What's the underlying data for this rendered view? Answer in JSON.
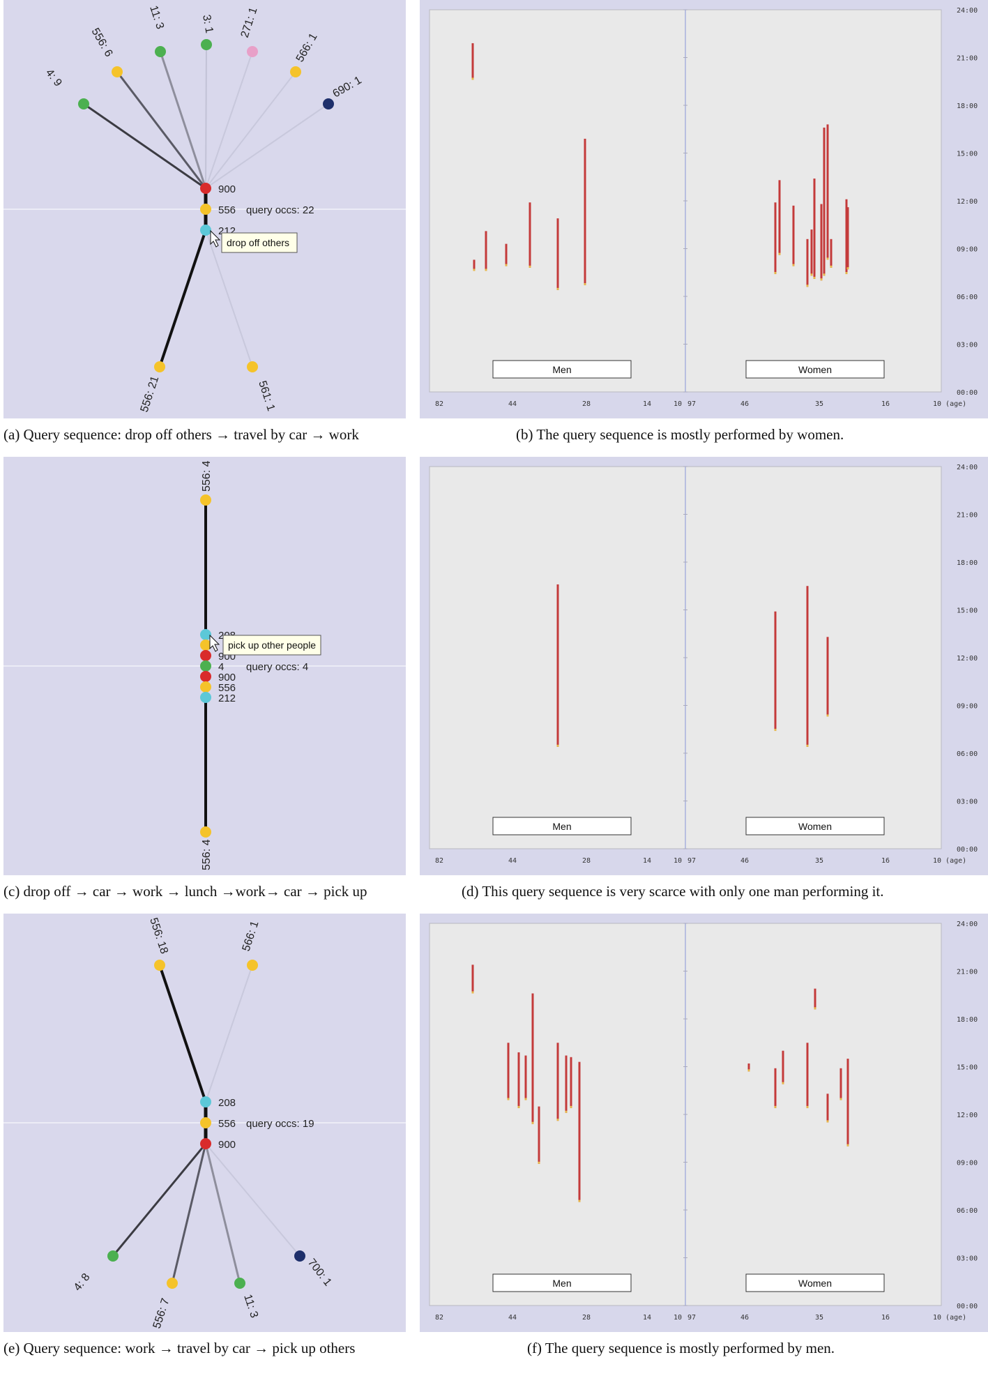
{
  "panels": {
    "a": {
      "caption": "(a)  Query sequence: drop off others → travel by car → work",
      "stack_labels": [
        "900",
        "556",
        "212"
      ],
      "query_occs": "query occs: 22",
      "tooltip": "drop off others",
      "upper_branches": [
        {
          "label": "4: 9",
          "color": "#4cb050"
        },
        {
          "label": "556: 6",
          "color": "#f5c32a"
        },
        {
          "label": "11: 3",
          "color": "#4cb050"
        },
        {
          "label": "3: 1",
          "color": "#4cb050"
        },
        {
          "label": "271: 1",
          "color": "#e8a0c8"
        },
        {
          "label": "566: 1",
          "color": "#f5c32a"
        },
        {
          "label": "690: 1",
          "color": "#1e2f6b"
        }
      ],
      "lower_branches": [
        {
          "label": "556: 21",
          "color": "#f5c32a"
        },
        {
          "label": "561: 1",
          "color": "#f5c32a"
        }
      ]
    },
    "c": {
      "caption": "(c)  drop off → car → work → lunch →work→ car → pick up",
      "top_label": "556: 4",
      "bottom_label": "556: 4",
      "stack_labels": [
        "208",
        "900",
        "4",
        "900",
        "556",
        "212"
      ],
      "query_occs": "query occs: 4",
      "tooltip": "pick up other people"
    },
    "e": {
      "caption": "(e)  Query sequence: work → travel by car → pick up others",
      "stack_labels": [
        "208",
        "556",
        "900"
      ],
      "query_occs": "query occs: 19",
      "upper_branches": [
        {
          "label": "556: 18",
          "color": "#f5c32a"
        },
        {
          "label": "566: 1",
          "color": "#f5c32a"
        }
      ],
      "lower_branches": [
        {
          "label": "4: 8",
          "color": "#4cb050"
        },
        {
          "label": "556: 7",
          "color": "#f5c32a"
        },
        {
          "label": "11: 3",
          "color": "#4cb050"
        },
        {
          "label": "700: 1",
          "color": "#1e2f6b"
        }
      ]
    },
    "b": {
      "caption": "(b)  The query sequence is mostly performed by women.",
      "men_label": "Men",
      "women_label": "Women"
    },
    "d": {
      "caption": "(d)  This query sequence is very scarce with only one man performing it.",
      "men_label": "Men",
      "women_label": "Women"
    },
    "f": {
      "caption": "(f)  The query sequence is mostly performed by men.",
      "men_label": "Men",
      "women_label": "Women"
    }
  },
  "axis": {
    "y_ticks": [
      "24:00",
      "21:00",
      "18:00",
      "15:00",
      "12:00",
      "09:00",
      "06:00",
      "03:00",
      "00:00"
    ],
    "x_ticks_men": [
      "82",
      "44",
      "28",
      "14",
      "10"
    ],
    "x_ticks_women": [
      "97",
      "46",
      "35",
      "16",
      "10 (age)"
    ]
  },
  "chart_data": [
    {
      "type": "bar",
      "panel": "b",
      "groups": [
        "Men",
        "Women"
      ],
      "y_unit": "time of day (hours)",
      "ylim": [
        0,
        24
      ],
      "bars": {
        "Men": [
          [
            7.6,
            8.3
          ],
          [
            7.6,
            10.1
          ],
          [
            7.9,
            9.3
          ],
          [
            7.8,
            11.9
          ],
          [
            6.4,
            10.9
          ],
          [
            6.7,
            15.9
          ],
          [
            19.6,
            21.9
          ]
        ],
        "Women": [
          [
            7.4,
            11.9
          ],
          [
            8.6,
            13.3
          ],
          [
            7.9,
            11.7
          ],
          [
            6.6,
            9.6
          ],
          [
            7.3,
            10.2
          ],
          [
            7.1,
            13.4
          ],
          [
            7.0,
            11.8
          ],
          [
            7.3,
            16.6
          ],
          [
            8.3,
            16.8
          ],
          [
            7.8,
            9.6
          ],
          [
            7.4,
            12.1
          ],
          [
            7.7,
            11.6
          ]
        ]
      }
    },
    {
      "type": "bar",
      "panel": "d",
      "groups": [
        "Men",
        "Women"
      ],
      "y_unit": "time of day (hours)",
      "ylim": [
        0,
        24
      ],
      "bars": {
        "Men": [
          [
            6.4,
            16.6
          ]
        ],
        "Women": [
          [
            7.4,
            14.9
          ],
          [
            6.4,
            16.5
          ],
          [
            8.3,
            13.3
          ]
        ]
      }
    },
    {
      "type": "bar",
      "panel": "f",
      "groups": [
        "Men",
        "Women"
      ],
      "y_unit": "time of day (hours)",
      "ylim": [
        0,
        24
      ],
      "bars": {
        "Men": [
          [
            19.6,
            21.4
          ],
          [
            12.9,
            16.5
          ],
          [
            12.4,
            15.9
          ],
          [
            12.9,
            15.7
          ],
          [
            11.4,
            19.6
          ],
          [
            8.9,
            12.5
          ],
          [
            11.6,
            16.5
          ],
          [
            12.1,
            15.7
          ],
          [
            12.4,
            15.6
          ],
          [
            6.5,
            15.3
          ]
        ],
        "Women": [
          [
            14.7,
            15.2
          ],
          [
            12.4,
            14.9
          ],
          [
            13.9,
            16.0
          ],
          [
            12.4,
            16.5
          ],
          [
            18.6,
            19.9
          ],
          [
            11.5,
            13.3
          ],
          [
            12.9,
            14.9
          ],
          [
            10.0,
            15.5
          ]
        ]
      }
    }
  ]
}
